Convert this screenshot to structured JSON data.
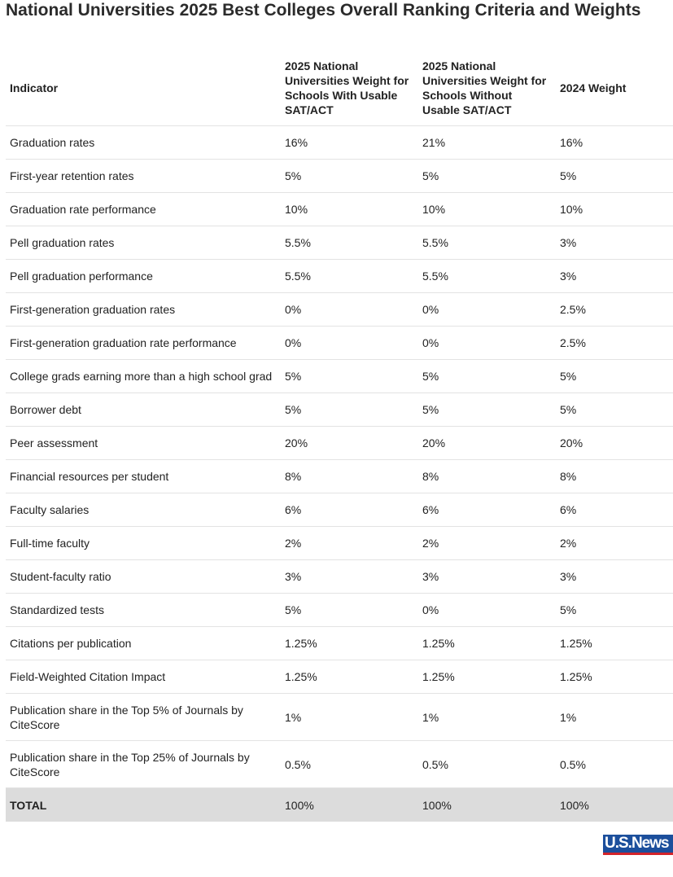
{
  "header": {
    "title": "National Universities 2025 Best Colleges Overall Ranking Criteria and Weights"
  },
  "table": {
    "columns": [
      "Indicator",
      "2025 National Universities Weight for Schools With Usable SAT/ACT",
      "2025 National Universities Weight for Schools Without Usable SAT/ACT",
      "2024 Weight"
    ],
    "rows": [
      [
        "Graduation rates",
        "16%",
        "21%",
        "16%"
      ],
      [
        "First-year retention rates",
        "5%",
        "5%",
        "5%"
      ],
      [
        "Graduation rate performance",
        "10%",
        "10%",
        "10%"
      ],
      [
        "Pell graduation rates",
        "5.5%",
        "5.5%",
        "3%"
      ],
      [
        "Pell graduation performance",
        "5.5%",
        "5.5%",
        "3%"
      ],
      [
        "First-generation graduation rates",
        "0%",
        "0%",
        "2.5%"
      ],
      [
        "First-generation graduation rate performance",
        "0%",
        "0%",
        "2.5%"
      ],
      [
        "College grads earning more than a high school grad",
        "5%",
        "5%",
        "5%"
      ],
      [
        "Borrower debt",
        "5%",
        "5%",
        "5%"
      ],
      [
        "Peer assessment",
        "20%",
        "20%",
        "20%"
      ],
      [
        "Financial resources per student",
        "8%",
        "8%",
        "8%"
      ],
      [
        "Faculty salaries",
        "6%",
        "6%",
        "6%"
      ],
      [
        "Full-time faculty",
        "2%",
        "2%",
        "2%"
      ],
      [
        "Student-faculty ratio",
        "3%",
        "3%",
        "3%"
      ],
      [
        "Standardized tests",
        "5%",
        "0%",
        "5%"
      ],
      [
        "Citations per publication",
        "1.25%",
        "1.25%",
        "1.25%"
      ],
      [
        "Field-Weighted Citation Impact",
        "1.25%",
        "1.25%",
        "1.25%"
      ],
      [
        "Publication share in the Top 5% of Journals by CiteScore",
        "1%",
        "1%",
        "1%"
      ],
      [
        "Publication share in the Top 25% of Journals by CiteScore",
        "0.5%",
        "0.5%",
        "0.5%"
      ]
    ],
    "total": [
      "TOTAL",
      "100%",
      "100%",
      "100%"
    ]
  },
  "logo": {
    "text": "U.S.News"
  }
}
